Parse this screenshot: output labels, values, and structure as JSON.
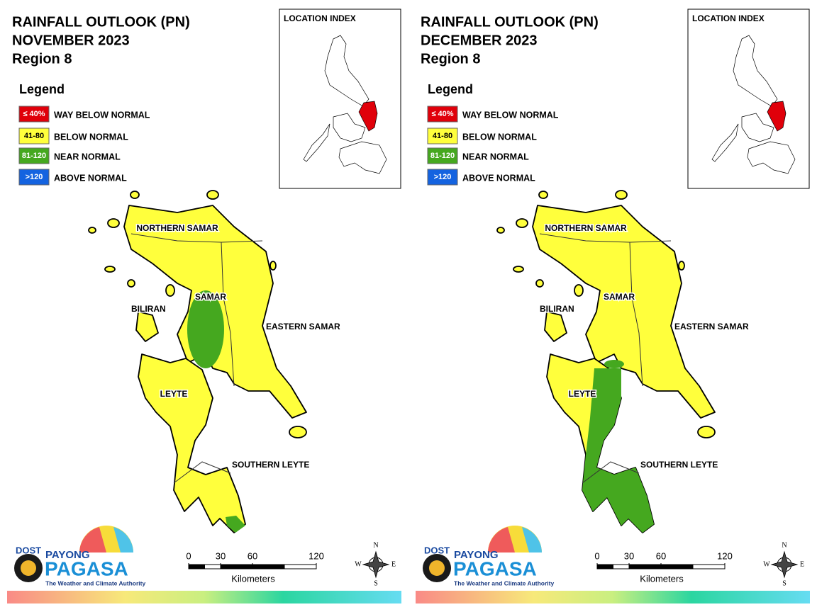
{
  "panels": [
    {
      "title": [
        "RAINFALL OUTLOOK (PN)",
        "NOVEMBER 2023",
        "Region 8"
      ],
      "legend_title": "Legend",
      "legend": [
        {
          "range": "≤ 40%",
          "label": "WAY BELOW NORMAL",
          "color": "#e0000a"
        },
        {
          "range": "41-80",
          "label": "BELOW NORMAL",
          "color": "#ffff3c"
        },
        {
          "range": "81-120",
          "label": "NEAR NORMAL",
          "color": "#45a81f"
        },
        {
          "range": ">120",
          "label": "ABOVE NORMAL",
          "color": "#1463e0"
        }
      ],
      "index_title": "LOCATION INDEX",
      "provinces": [
        "NORTHERN SAMAR",
        "SAMAR",
        "EASTERN SAMAR",
        "BILIRAN",
        "LEYTE",
        "SOUTHERN LEYTE"
      ],
      "scale": {
        "ticks": [
          0,
          30,
          60,
          120
        ],
        "unit": "Kilometers"
      },
      "compass": [
        "N",
        "E",
        "S",
        "W"
      ],
      "logo": {
        "agency": "DOST",
        "line1": "PAYONG",
        "line2": "PAGASA",
        "tagline": "The Weather and Climate Authority"
      }
    },
    {
      "title": [
        "RAINFALL OUTLOOK (PN)",
        "DECEMBER 2023",
        "Region 8"
      ],
      "legend_title": "Legend",
      "legend": [
        {
          "range": "≤ 40%",
          "label": "WAY BELOW NORMAL",
          "color": "#e0000a"
        },
        {
          "range": "41-80",
          "label": "BELOW NORMAL",
          "color": "#ffff3c"
        },
        {
          "range": "81-120",
          "label": "NEAR NORMAL",
          "color": "#45a81f"
        },
        {
          "range": ">120",
          "label": "ABOVE NORMAL",
          "color": "#1463e0"
        }
      ],
      "index_title": "LOCATION INDEX",
      "provinces": [
        "NORTHERN SAMAR",
        "SAMAR",
        "EASTERN SAMAR",
        "BILIRAN",
        "LEYTE",
        "SOUTHERN LEYTE"
      ],
      "scale": {
        "ticks": [
          0,
          30,
          60,
          120
        ],
        "unit": "Kilometers"
      },
      "compass": [
        "N",
        "E",
        "S",
        "W"
      ],
      "logo": {
        "agency": "DOST",
        "line1": "PAYONG",
        "line2": "PAGASA",
        "tagline": "The Weather and Climate Authority"
      }
    }
  ]
}
